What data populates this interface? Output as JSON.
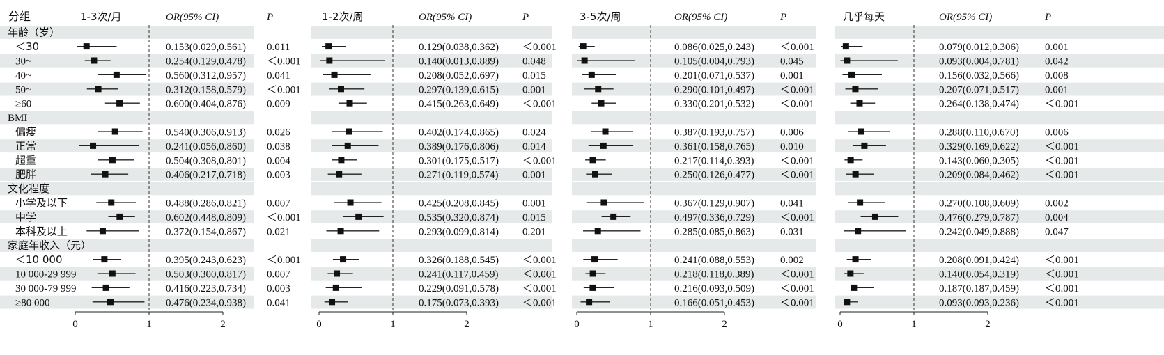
{
  "chart_data": {
    "type": "forest",
    "header": {
      "group_label": "分组",
      "or_label": "OR(95% CI)",
      "p_label": "P"
    },
    "panels": [
      {
        "title": "1-3次/月"
      },
      {
        "title": "1-2次/周"
      },
      {
        "title": "3-5次/周"
      },
      {
        "title": "几乎每天"
      }
    ],
    "reference_line": 1,
    "x_ticks": [
      0,
      1,
      2
    ],
    "xlim": [
      0,
      2
    ],
    "rows": [
      {
        "kind": "header",
        "label": "年龄（岁）"
      },
      {
        "kind": "item",
        "label": "＜30",
        "values": [
          {
            "or": 0.153,
            "lo": 0.029,
            "hi": 0.561,
            "text": "0.153(0.029,0.561)",
            "p": "0.011"
          },
          {
            "or": 0.129,
            "lo": 0.038,
            "hi": 0.362,
            "text": "0.129(0.038,0.362)",
            "p": "＜0.001"
          },
          {
            "or": 0.086,
            "lo": 0.025,
            "hi": 0.243,
            "text": "0.086(0.025,0.243)",
            "p": "＜0.001"
          },
          {
            "or": 0.079,
            "lo": 0.012,
            "hi": 0.306,
            "text": "0.079(0.012,0.306)",
            "p": "0.001"
          }
        ]
      },
      {
        "kind": "item",
        "label": "30~",
        "values": [
          {
            "or": 0.254,
            "lo": 0.129,
            "hi": 0.478,
            "text": "0.254(0.129,0.478)",
            "p": "＜0.001"
          },
          {
            "or": 0.14,
            "lo": 0.013,
            "hi": 0.889,
            "text": "0.140(0.013,0.889)",
            "p": "0.048"
          },
          {
            "or": 0.105,
            "lo": 0.004,
            "hi": 0.793,
            "text": "0.105(0.004,0.793)",
            "p": "0.045"
          },
          {
            "or": 0.093,
            "lo": 0.004,
            "hi": 0.781,
            "text": "0.093(0.004,0.781)",
            "p": "0.042"
          }
        ]
      },
      {
        "kind": "item",
        "label": "40~",
        "values": [
          {
            "or": 0.56,
            "lo": 0.312,
            "hi": 0.957,
            "text": "0.560(0.312,0.957)",
            "p": "0.041"
          },
          {
            "or": 0.208,
            "lo": 0.052,
            "hi": 0.697,
            "text": "0.208(0.052,0.697)",
            "p": "0.015"
          },
          {
            "or": 0.201,
            "lo": 0.071,
            "hi": 0.537,
            "text": "0.201(0.071,0.537)",
            "p": "0.001"
          },
          {
            "or": 0.156,
            "lo": 0.032,
            "hi": 0.566,
            "text": "0.156(0.032,0.566)",
            "p": "0.008"
          }
        ]
      },
      {
        "kind": "item",
        "label": "50~",
        "values": [
          {
            "or": 0.312,
            "lo": 0.158,
            "hi": 0.579,
            "text": "0.312(0.158,0.579)",
            "p": "＜0.001"
          },
          {
            "or": 0.297,
            "lo": 0.139,
            "hi": 0.615,
            "text": "0.297(0.139,0.615)",
            "p": "0.001"
          },
          {
            "or": 0.29,
            "lo": 0.101,
            "hi": 0.497,
            "text": "0.290(0.101,0.497)",
            "p": "＜0.001"
          },
          {
            "or": 0.207,
            "lo": 0.071,
            "hi": 0.517,
            "text": "0.207(0.071,0.517)",
            "p": "0.001"
          }
        ]
      },
      {
        "kind": "item",
        "label": "≥60",
        "values": [
          {
            "or": 0.6,
            "lo": 0.404,
            "hi": 0.876,
            "text": "0.600(0.404,0.876)",
            "p": "0.009"
          },
          {
            "or": 0.415,
            "lo": 0.263,
            "hi": 0.649,
            "text": "0.415(0.263,0.649)",
            "p": "＜0.001"
          },
          {
            "or": 0.33,
            "lo": 0.201,
            "hi": 0.532,
            "text": "0.330(0.201,0.532)",
            "p": "＜0.001"
          },
          {
            "or": 0.264,
            "lo": 0.138,
            "hi": 0.474,
            "text": "0.264(0.138,0.474)",
            "p": "＜0.001"
          }
        ]
      },
      {
        "kind": "header",
        "label": "BMI"
      },
      {
        "kind": "item",
        "label": "偏瘦",
        "values": [
          {
            "or": 0.54,
            "lo": 0.306,
            "hi": 0.913,
            "text": "0.540(0.306,0.913)",
            "p": "0.026"
          },
          {
            "or": 0.402,
            "lo": 0.174,
            "hi": 0.865,
            "text": "0.402(0.174,0.865)",
            "p": "0.024"
          },
          {
            "or": 0.387,
            "lo": 0.193,
            "hi": 0.757,
            "text": "0.387(0.193,0.757)",
            "p": "0.006"
          },
          {
            "or": 0.288,
            "lo": 0.11,
            "hi": 0.67,
            "text": "0.288(0.110,0.670)",
            "p": "0.006"
          }
        ]
      },
      {
        "kind": "item",
        "label": "正常",
        "values": [
          {
            "or": 0.241,
            "lo": 0.056,
            "hi": 0.86,
            "text": "0.241(0.056,0.860)",
            "p": "0.038"
          },
          {
            "or": 0.389,
            "lo": 0.176,
            "hi": 0.806,
            "text": "0.389(0.176,0.806)",
            "p": "0.014"
          },
          {
            "or": 0.361,
            "lo": 0.158,
            "hi": 0.765,
            "text": "0.361(0.158,0.765)",
            "p": "0.010"
          },
          {
            "or": 0.329,
            "lo": 0.169,
            "hi": 0.622,
            "text": "0.329(0.169,0.622)",
            "p": "＜0.001"
          }
        ]
      },
      {
        "kind": "item",
        "label": "超重",
        "values": [
          {
            "or": 0.504,
            "lo": 0.308,
            "hi": 0.801,
            "text": "0.504(0.308,0.801)",
            "p": "0.004"
          },
          {
            "or": 0.301,
            "lo": 0.175,
            "hi": 0.517,
            "text": "0.301(0.175,0.517)",
            "p": "＜0.001"
          },
          {
            "or": 0.217,
            "lo": 0.114,
            "hi": 0.393,
            "text": "0.217(0.114,0.393)",
            "p": "＜0.001"
          },
          {
            "or": 0.143,
            "lo": 0.06,
            "hi": 0.305,
            "text": "0.143(0.060,0.305)",
            "p": "＜0.001"
          }
        ]
      },
      {
        "kind": "item",
        "label": "肥胖",
        "values": [
          {
            "or": 0.406,
            "lo": 0.217,
            "hi": 0.718,
            "text": "0.406(0.217,0.718)",
            "p": "0.003"
          },
          {
            "or": 0.271,
            "lo": 0.119,
            "hi": 0.574,
            "text": "0.271(0.119,0.574)",
            "p": "0.001"
          },
          {
            "or": 0.25,
            "lo": 0.126,
            "hi": 0.477,
            "text": "0.250(0.126,0.477)",
            "p": "＜0.001"
          },
          {
            "or": 0.209,
            "lo": 0.084,
            "hi": 0.462,
            "text": "0.209(0.084,0.462)",
            "p": "＜0.001"
          }
        ]
      },
      {
        "kind": "header",
        "label": "文化程度"
      },
      {
        "kind": "item",
        "label": "小学及以下",
        "values": [
          {
            "or": 0.488,
            "lo": 0.286,
            "hi": 0.821,
            "text": "0.488(0.286,0.821)",
            "p": "0.007"
          },
          {
            "or": 0.425,
            "lo": 0.208,
            "hi": 0.845,
            "text": "0.425(0.208,0.845)",
            "p": "0.001"
          },
          {
            "or": 0.367,
            "lo": 0.129,
            "hi": 0.907,
            "text": "0.367(0.129,0.907)",
            "p": "0.041"
          },
          {
            "or": 0.27,
            "lo": 0.108,
            "hi": 0.609,
            "text": "0.270(0.108,0.609)",
            "p": "0.002"
          }
        ]
      },
      {
        "kind": "item",
        "label": "中学",
        "values": [
          {
            "or": 0.602,
            "lo": 0.448,
            "hi": 0.809,
            "text": "0.602(0.448,0.809)",
            "p": "＜0.001"
          },
          {
            "or": 0.535,
            "lo": 0.32,
            "hi": 0.874,
            "text": "0.535(0.320,0.874)",
            "p": "0.015"
          },
          {
            "or": 0.497,
            "lo": 0.336,
            "hi": 0.729,
            "text": "0.497(0.336,0.729)",
            "p": "＜0.001"
          },
          {
            "or": 0.476,
            "lo": 0.279,
            "hi": 0.787,
            "text": "0.476(0.279,0.787)",
            "p": "0.004"
          }
        ]
      },
      {
        "kind": "item",
        "label": "本科及以上",
        "values": [
          {
            "or": 0.372,
            "lo": 0.154,
            "hi": 0.867,
            "text": "0.372(0.154,0.867)",
            "p": "0.021"
          },
          {
            "or": 0.293,
            "lo": 0.099,
            "hi": 0.814,
            "text": "0.293(0.099,0.814)",
            "p": "0.201"
          },
          {
            "or": 0.285,
            "lo": 0.085,
            "hi": 0.863,
            "text": "0.285(0.085,0.863)",
            "p": "0.031"
          },
          {
            "or": 0.242,
            "lo": 0.049,
            "hi": 0.888,
            "text": "0.242(0.049,0.888)",
            "p": "0.047"
          }
        ]
      },
      {
        "kind": "header",
        "label": "家庭年收入（元）"
      },
      {
        "kind": "item",
        "label": "＜10 000",
        "values": [
          {
            "or": 0.395,
            "lo": 0.243,
            "hi": 0.623,
            "text": "0.395(0.243,0.623)",
            "p": "＜0.001"
          },
          {
            "or": 0.326,
            "lo": 0.188,
            "hi": 0.545,
            "text": "0.326(0.188,0.545)",
            "p": "＜0.001"
          },
          {
            "or": 0.241,
            "lo": 0.088,
            "hi": 0.553,
            "text": "0.241(0.088,0.553)",
            "p": "0.002"
          },
          {
            "or": 0.208,
            "lo": 0.091,
            "hi": 0.424,
            "text": "0.208(0.091,0.424)",
            "p": "＜0.001"
          }
        ]
      },
      {
        "kind": "item",
        "label": "10 000-29 999",
        "values": [
          {
            "or": 0.503,
            "lo": 0.3,
            "hi": 0.817,
            "text": "0.503(0.300,0.817)",
            "p": "0.007"
          },
          {
            "or": 0.241,
            "lo": 0.117,
            "hi": 0.459,
            "text": "0.241(0.117,0.459)",
            "p": "＜0.001"
          },
          {
            "or": 0.218,
            "lo": 0.118,
            "hi": 0.389,
            "text": "0.218(0.118,0.389)",
            "p": "＜0.001"
          },
          {
            "or": 0.14,
            "lo": 0.054,
            "hi": 0.319,
            "text": "0.140(0.054,0.319)",
            "p": "＜0.001"
          }
        ]
      },
      {
        "kind": "item",
        "label": "30 000-79 999",
        "values": [
          {
            "or": 0.416,
            "lo": 0.223,
            "hi": 0.734,
            "text": "0.416(0.223,0.734)",
            "p": "0.003"
          },
          {
            "or": 0.229,
            "lo": 0.091,
            "hi": 0.578,
            "text": "0.229(0.091,0.578)",
            "p": "＜0.001"
          },
          {
            "or": 0.216,
            "lo": 0.093,
            "hi": 0.509,
            "text": "0.216(0.093,0.509)",
            "p": "＜0.001"
          },
          {
            "or": 0.187,
            "lo": 0.187,
            "hi": 0.459,
            "text": "0.187(0.187,0.459)",
            "p": "＜0.001"
          }
        ]
      },
      {
        "kind": "item",
        "label": "≥80 000",
        "values": [
          {
            "or": 0.476,
            "lo": 0.234,
            "hi": 0.938,
            "text": "0.476(0.234,0.938)",
            "p": "0.041"
          },
          {
            "or": 0.175,
            "lo": 0.073,
            "hi": 0.393,
            "text": "0.175(0.073,0.393)",
            "p": "＜0.001"
          },
          {
            "or": 0.166,
            "lo": 0.051,
            "hi": 0.453,
            "text": "0.166(0.051,0.453)",
            "p": "＜0.001"
          },
          {
            "or": 0.093,
            "lo": 0.093,
            "hi": 0.236,
            "text": "0.093(0.093,0.236)",
            "p": "＜0.001"
          }
        ]
      }
    ],
    "colors": {
      "row_shade": "#e6e9ea",
      "marker": "#111111",
      "line": "#222222"
    }
  }
}
